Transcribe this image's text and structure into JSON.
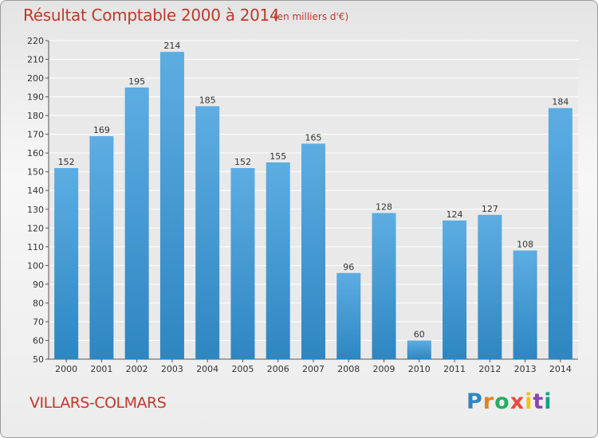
{
  "chart_data": {
    "type": "bar",
    "title": "Résultat Comptable 2000 à 2014",
    "subtitle": "(en milliers d'€)",
    "categories": [
      "2000",
      "2001",
      "2002",
      "2003",
      "2004",
      "2005",
      "2006",
      "2007",
      "2008",
      "2009",
      "2010",
      "2011",
      "2012",
      "2013",
      "2014"
    ],
    "values": [
      152,
      169,
      195,
      214,
      185,
      152,
      155,
      165,
      96,
      128,
      60,
      124,
      127,
      108,
      184
    ],
    "ylim": [
      50,
      220
    ],
    "yticks": [
      50,
      60,
      70,
      80,
      90,
      100,
      110,
      120,
      130,
      140,
      150,
      160,
      170,
      180,
      190,
      200,
      210,
      220
    ],
    "xlabel": "",
    "ylabel": "",
    "grid": true
  },
  "footer": {
    "location": "VILLARS-COLMARS",
    "brand": "Proxiti"
  },
  "colors": {
    "bar_light": "#5dade2",
    "bar_dark": "#2e86c1",
    "title": "#c0392b",
    "grid": "#ffffff"
  }
}
